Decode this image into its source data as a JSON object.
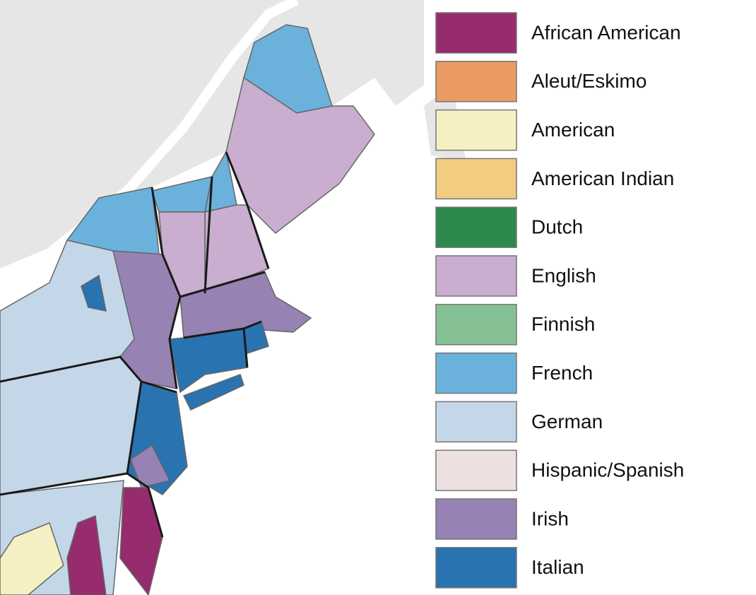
{
  "legend": {
    "items": [
      {
        "label": "African American",
        "color": "#962b6e"
      },
      {
        "label": "Aleut/Eskimo",
        "color": "#eb9b62"
      },
      {
        "label": "American",
        "color": "#f5f0c3"
      },
      {
        "label": "American Indian",
        "color": "#f2cc80"
      },
      {
        "label": "Dutch",
        "color": "#2c8a4d"
      },
      {
        "label": "English",
        "color": "#c9aecf"
      },
      {
        "label": "Finnish",
        "color": "#86c196"
      },
      {
        "label": "French",
        "color": "#6ab2dc"
      },
      {
        "label": "German",
        "color": "#c4d7e8"
      },
      {
        "label": "Hispanic/Spanish",
        "color": "#ede0e1"
      },
      {
        "label": "Irish",
        "color": "#9682b3"
      },
      {
        "label": "Italian",
        "color": "#2a73b1"
      }
    ]
  }
}
